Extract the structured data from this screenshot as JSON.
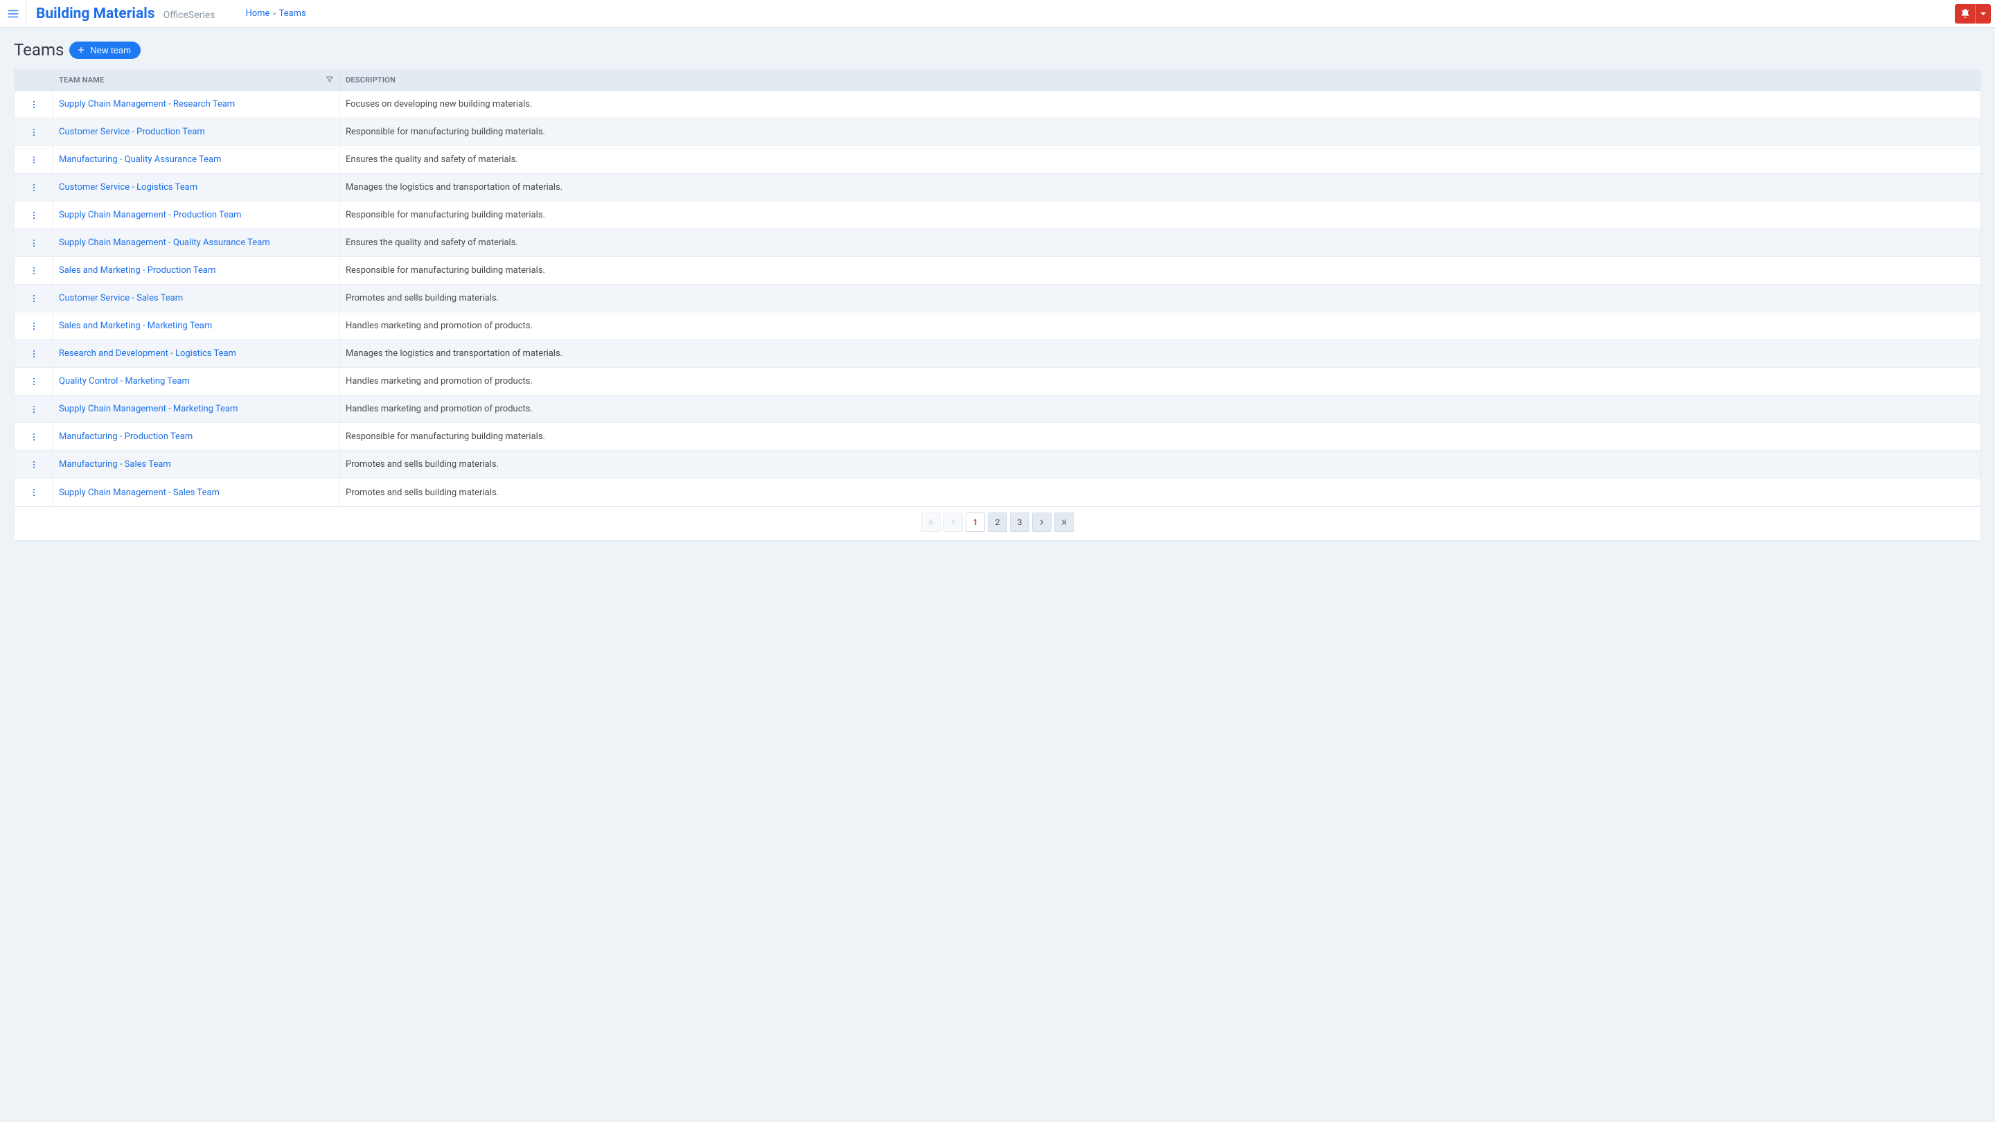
{
  "brand": {
    "title": "Building Materials",
    "subtitle": "OfficeSeries"
  },
  "breadcrumbs": {
    "home": "Home",
    "current": "Teams"
  },
  "page": {
    "title": "Teams",
    "new_button": "New team"
  },
  "table": {
    "headers": {
      "team_name": "Team Name",
      "description": "Description"
    },
    "rows": [
      {
        "name": "Supply Chain Management - Research Team",
        "description": "Focuses on developing new building materials."
      },
      {
        "name": "Customer Service - Production Team",
        "description": "Responsible for manufacturing building materials."
      },
      {
        "name": "Manufacturing - Quality Assurance Team",
        "description": "Ensures the quality and safety of materials."
      },
      {
        "name": "Customer Service - Logistics Team",
        "description": "Manages the logistics and transportation of materials."
      },
      {
        "name": "Supply Chain Management - Production Team",
        "description": "Responsible for manufacturing building materials."
      },
      {
        "name": "Supply Chain Management - Quality Assurance Team",
        "description": "Ensures the quality and safety of materials."
      },
      {
        "name": "Sales and Marketing - Production Team",
        "description": "Responsible for manufacturing building materials."
      },
      {
        "name": "Customer Service - Sales Team",
        "description": "Promotes and sells building materials."
      },
      {
        "name": "Sales and Marketing - Marketing Team",
        "description": "Handles marketing and promotion of products."
      },
      {
        "name": "Research and Development - Logistics Team",
        "description": "Manages the logistics and transportation of materials."
      },
      {
        "name": "Quality Control - Marketing Team",
        "description": "Handles marketing and promotion of products."
      },
      {
        "name": "Supply Chain Management - Marketing Team",
        "description": "Handles marketing and promotion of products."
      },
      {
        "name": "Manufacturing - Production Team",
        "description": "Responsible for manufacturing building materials."
      },
      {
        "name": "Manufacturing - Sales Team",
        "description": "Promotes and sells building materials."
      },
      {
        "name": "Supply Chain Management - Sales Team",
        "description": "Promotes and sells building materials."
      }
    ]
  },
  "pagination": {
    "pages": [
      "1",
      "2",
      "3"
    ],
    "current_index": 0
  },
  "colors": {
    "primary": "#1d6fe8",
    "accent_button": "#1d7af2",
    "danger": "#d9372b",
    "header_bg": "#e3eaf2",
    "page_bg": "#eef3f7",
    "row_alt": "#f2f6fa",
    "text": "#4a4a4a",
    "muted": "#8a96a3"
  }
}
